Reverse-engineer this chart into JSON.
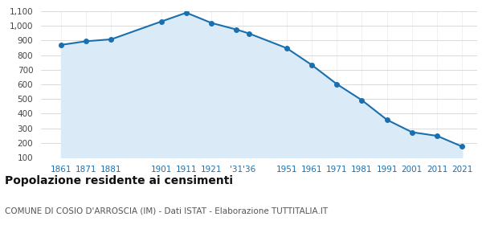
{
  "years": [
    1861,
    1871,
    1881,
    1901,
    1911,
    1921,
    1931,
    1936,
    1951,
    1961,
    1971,
    1981,
    1991,
    2001,
    2011,
    2021
  ],
  "population": [
    870,
    895,
    908,
    1030,
    1090,
    1020,
    975,
    948,
    848,
    733,
    602,
    492,
    358,
    273,
    248,
    175
  ],
  "ylim": [
    100,
    1100
  ],
  "yticks": [
    100,
    200,
    300,
    400,
    500,
    600,
    700,
    800,
    900,
    1000,
    1100
  ],
  "line_color": "#1a6faf",
  "fill_color": "#daeaf7",
  "marker_color": "#1a6faf",
  "grid_color": "#cccccc",
  "background_color": "#ffffff",
  "title": "Popolazione residente ai censimenti",
  "subtitle": "COMUNE DI COSIO D'ARROSCIA (IM) - Dati ISTAT - Elaborazione TUTTITALIA.IT",
  "title_fontsize": 10,
  "subtitle_fontsize": 7.5,
  "tick_fontsize": 7.5,
  "x_tick_positions": [
    1861,
    1871,
    1881,
    1901,
    1911,
    1921,
    1933.5,
    1951,
    1961,
    1971,
    1981,
    1991,
    2001,
    2011,
    2021
  ],
  "x_tick_labels": [
    "1861",
    "1871",
    "1881",
    "1901",
    "1911",
    "1921",
    "'31'36",
    "1951",
    "1961",
    "1971",
    "1981",
    "1991",
    "2001",
    "2011",
    "2021"
  ],
  "xlim": [
    1853,
    2027
  ],
  "x_tick_color": "#1a6faf"
}
